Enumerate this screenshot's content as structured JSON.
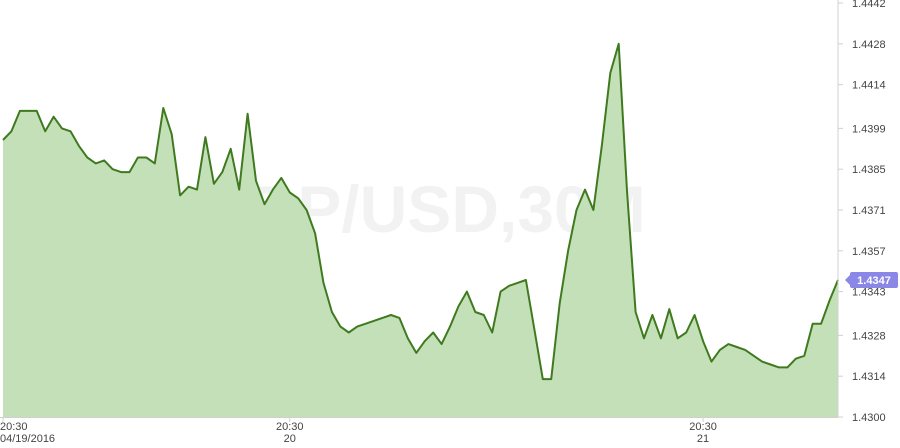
{
  "watermark": "GBP/USD,30M",
  "colors": {
    "line": "#3f7a1f",
    "area": "#c4e0b8",
    "axis": "#d0d0d0",
    "badge": "#8b87e6",
    "text": "#444444"
  },
  "last_price_label": "1.4347",
  "chart_data": {
    "type": "area",
    "title": "",
    "xlabel": "",
    "ylabel": "",
    "ylim": [
      1.43,
      1.4442
    ],
    "y_ticks": [
      "1.4442",
      "1.4428",
      "1.4414",
      "1.4399",
      "1.4385",
      "1.4371",
      "1.4357",
      "1.4343",
      "1.4328",
      "1.4314",
      "1.4300"
    ],
    "x_ticks": [
      {
        "i": 0,
        "time": "20:30",
        "date": "04/19/2016"
      },
      {
        "i": 34,
        "time": "20:30",
        "date": "20"
      },
      {
        "i": 83,
        "time": "20:30",
        "date": "21"
      }
    ],
    "series": [
      {
        "values": [
          1.4395,
          1.4398,
          1.4405,
          1.4405,
          1.4405,
          1.4398,
          1.4403,
          1.4399,
          1.4398,
          1.4393,
          1.4389,
          1.4387,
          1.4388,
          1.4385,
          1.4384,
          1.4384,
          1.4389,
          1.4389,
          1.4387,
          1.4406,
          1.4397,
          1.4376,
          1.4379,
          1.4378,
          1.4396,
          1.438,
          1.4384,
          1.4392,
          1.4378,
          1.4404,
          1.4381,
          1.4373,
          1.4378,
          1.4382,
          1.4377,
          1.4375,
          1.4371,
          1.4363,
          1.4346,
          1.4336,
          1.4331,
          1.4329,
          1.4331,
          1.4332,
          1.4333,
          1.4334,
          1.4335,
          1.4334,
          1.4327,
          1.4322,
          1.4326,
          1.4329,
          1.4325,
          1.4331,
          1.4338,
          1.4343,
          1.4336,
          1.4335,
          1.4329,
          1.4343,
          1.4345,
          1.4346,
          1.4347,
          1.433,
          1.4313,
          1.4313,
          1.4339,
          1.4357,
          1.4371,
          1.4378,
          1.4371,
          1.4393,
          1.4418,
          1.4428,
          1.4377,
          1.4336,
          1.4327,
          1.4335,
          1.4327,
          1.4337,
          1.4327,
          1.4329,
          1.4335,
          1.4326,
          1.4319,
          1.4323,
          1.4325,
          1.4324,
          1.4323,
          1.4321,
          1.4319,
          1.4318,
          1.4317,
          1.4317,
          1.432,
          1.4321,
          1.4332,
          1.4332,
          1.434,
          1.4347
        ]
      }
    ]
  }
}
